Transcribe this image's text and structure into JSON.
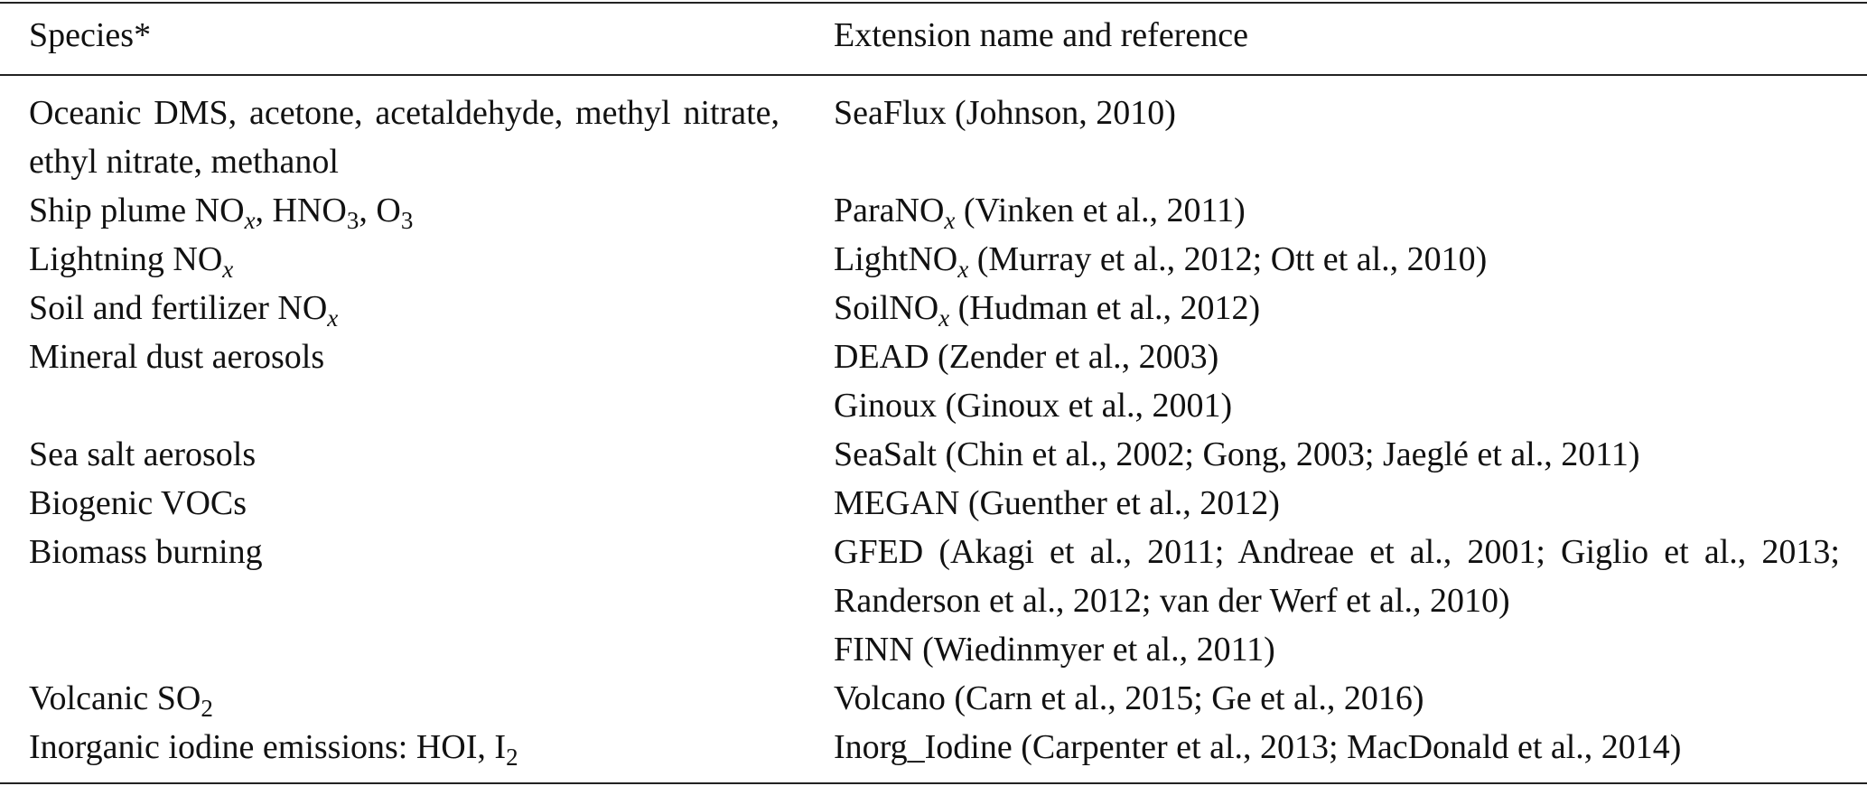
{
  "table": {
    "header": [
      "Species*",
      "Extension name and reference"
    ],
    "rows": [
      {
        "species": [
          "Oceanic DMS, acetone, acetaldehyde, methyl nitrate, ethyl nitrate, methanol"
        ],
        "references": [
          [
            "SeaFlux (Johnson, 2010)"
          ]
        ]
      },
      {
        "species": [
          "Ship plume NO",
          {
            "sub": "x",
            "italic": true
          },
          ", HNO",
          {
            "sub": "3"
          },
          ", O",
          {
            "sub": "3"
          }
        ],
        "references": [
          [
            "ParaNO",
            {
              "sub": "x",
              "italic": true
            },
            " (Vinken et al., 2011)"
          ]
        ]
      },
      {
        "species": [
          "Lightning NO",
          {
            "sub": "x",
            "italic": true
          }
        ],
        "references": [
          [
            "LightNO",
            {
              "sub": "x",
              "italic": true
            },
            " (Murray et al., 2012; Ott et al., 2010)"
          ]
        ]
      },
      {
        "species": [
          "Soil and fertilizer NO",
          {
            "sub": "x",
            "italic": true
          }
        ],
        "references": [
          [
            "SoilNO",
            {
              "sub": "x",
              "italic": true
            },
            " (Hudman et al., 2012)"
          ]
        ]
      },
      {
        "species": [
          "Mineral dust aerosols"
        ],
        "references": [
          [
            "DEAD (Zender et al., 2003)"
          ],
          [
            "Ginoux (Ginoux et al., 2001)"
          ]
        ]
      },
      {
        "species": [
          "Sea salt aerosols"
        ],
        "references": [
          [
            "SeaSalt (Chin et al., 2002; Gong, 2003; Jaeglé et al., 2011)"
          ]
        ]
      },
      {
        "species": [
          "Biogenic VOCs"
        ],
        "references": [
          [
            "MEGAN (Guenther et al., 2012)"
          ]
        ]
      },
      {
        "species": [
          "Biomass burning"
        ],
        "references": [
          [
            "GFED (Akagi et al., 2011; Andreae et al., 2001; Giglio et al., 2013; Randerson et al., 2012; van der Werf et al., 2010)"
          ],
          [
            "FINN (Wiedinmyer et al., 2011)"
          ]
        ]
      },
      {
        "species": [
          "Volcanic SO",
          {
            "sub": "2"
          }
        ],
        "references": [
          [
            "Volcano (Carn et al., 2015; Ge et al., 2016)"
          ]
        ]
      },
      {
        "species": [
          "Inorganic iodine emissions: HOI, I",
          {
            "sub": "2"
          }
        ],
        "references": [
          [
            "Inorg_Iodine (Carpenter et al., 2013; MacDonald et al., 2014)"
          ]
        ]
      }
    ]
  }
}
